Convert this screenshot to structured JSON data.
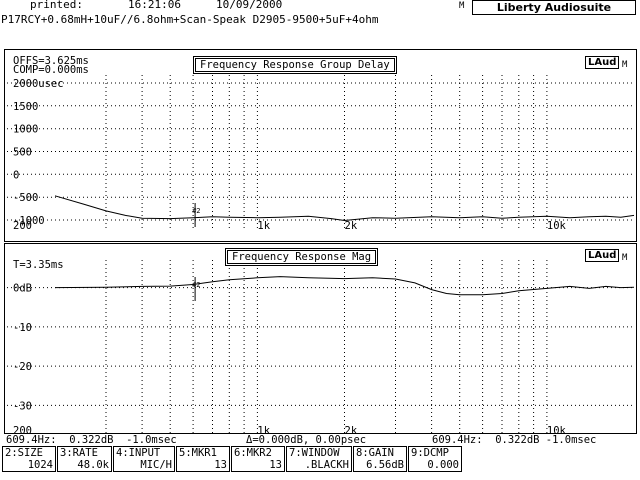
{
  "header": {
    "printed_label": "printed:",
    "time": "16:21:06",
    "date": "10/09/2000",
    "device_line": "P17RCY+0.68mH+10uF//6.8ohm+Scan-Speak D2905-9500+5uF+4ohm",
    "logo_prefix": "M",
    "logo": "Liberty Audiosuite"
  },
  "top_panel": {
    "title": "Frequency Response Group Delay",
    "offset": "OFFS=3.625ms",
    "comp": "COMP=0.000ms",
    "badge": "LAud",
    "badge_suffix": "M",
    "y_labels": [
      "2000usec",
      "1500",
      "1000",
      "500",
      "0",
      "-500",
      "-1000"
    ],
    "x_labels": [
      "200",
      "1k",
      "2k",
      "10k"
    ],
    "marker": "#2"
  },
  "bottom_panel": {
    "title": "Frequency Response Mag",
    "time": "T=3.35ms",
    "badge": "LAud",
    "badge_suffix": "M",
    "y_labels": [
      "0dB",
      "-10",
      "-20",
      "-30"
    ],
    "x_labels": [
      "200",
      "1k",
      "2k",
      "10k"
    ],
    "marker": "#2"
  },
  "status": {
    "left": "609.4Hz:  0.322dB  -1.0msec",
    "mid": "Δ=0.000dB, 0.00psec",
    "right": "609.4Hz:  0.322dB -1.0msec"
  },
  "softkeys": [
    {
      "label": "2:SIZE",
      "value": "1024"
    },
    {
      "label": "3:RATE",
      "value": "48.0k"
    },
    {
      "label": "4:INPUT",
      "value": "MIC/H"
    },
    {
      "label": "5:MKR1",
      "value": "13"
    },
    {
      "label": "6:MKR2",
      "value": "13"
    },
    {
      "label": "7:WINDOW",
      "value": ".BLACKH"
    },
    {
      "label": "8:GAIN",
      "value": "6.56dB"
    },
    {
      "label": "9:DCMP",
      "value": "0.000"
    }
  ],
  "chart_data": [
    {
      "type": "line",
      "title": "Frequency Response Group Delay",
      "xlabel": "",
      "ylabel": "",
      "x_scale": "log",
      "xlim": [
        200,
        20000
      ],
      "ylim": [
        -1000,
        2000
      ],
      "x_ticks": [
        "200",
        "1k",
        "2k",
        "10k"
      ],
      "y_ticks": [
        "2000usec",
        "1500",
        "1000",
        "500",
        "0",
        "-500",
        "-1000"
      ],
      "grid": true,
      "series": [
        {
          "x": [
            200,
            250,
            300,
            350,
            400,
            500,
            600,
            700,
            800,
            1000,
            1200,
            1500,
            1800,
            2000,
            2500,
            3000,
            4000,
            5000,
            6000,
            7000,
            8000,
            10000,
            12000,
            14000,
            16000,
            18000,
            20000
          ],
          "y": [
            -470,
            -650,
            -800,
            -900,
            -960,
            -970,
            -950,
            -930,
            -940,
            -950,
            -940,
            -920,
            -970,
            -1010,
            -950,
            -960,
            -930,
            -950,
            -930,
            -960,
            -940,
            -920,
            -950,
            -930,
            -920,
            -940,
            -900
          ]
        }
      ]
    },
    {
      "type": "line",
      "title": "Frequency Response Mag",
      "xlabel": "",
      "ylabel": "dB",
      "x_scale": "log",
      "xlim": [
        200,
        20000
      ],
      "ylim": [
        -35,
        5
      ],
      "x_ticks": [
        "200",
        "1k",
        "2k",
        "10k"
      ],
      "y_ticks": [
        "0dB",
        "-10",
        "-20",
        "-30"
      ],
      "grid": true,
      "series": [
        {
          "x": [
            200,
            300,
            400,
            500,
            600,
            700,
            800,
            1000,
            1200,
            1500,
            2000,
            2500,
            3000,
            3500,
            4000,
            4500,
            5000,
            6000,
            7000,
            8000,
            10000,
            12000,
            14000,
            16000,
            18000,
            20000
          ],
          "y": [
            0,
            0.1,
            0.3,
            0.4,
            0.8,
            1.5,
            2.0,
            2.5,
            2.8,
            2.5,
            2.3,
            2.5,
            2.2,
            1.2,
            -0.5,
            -1.5,
            -1.8,
            -1.8,
            -1.5,
            -0.8,
            -0.2,
            0.3,
            -0.2,
            0.3,
            0.0,
            0.1
          ]
        }
      ]
    }
  ]
}
